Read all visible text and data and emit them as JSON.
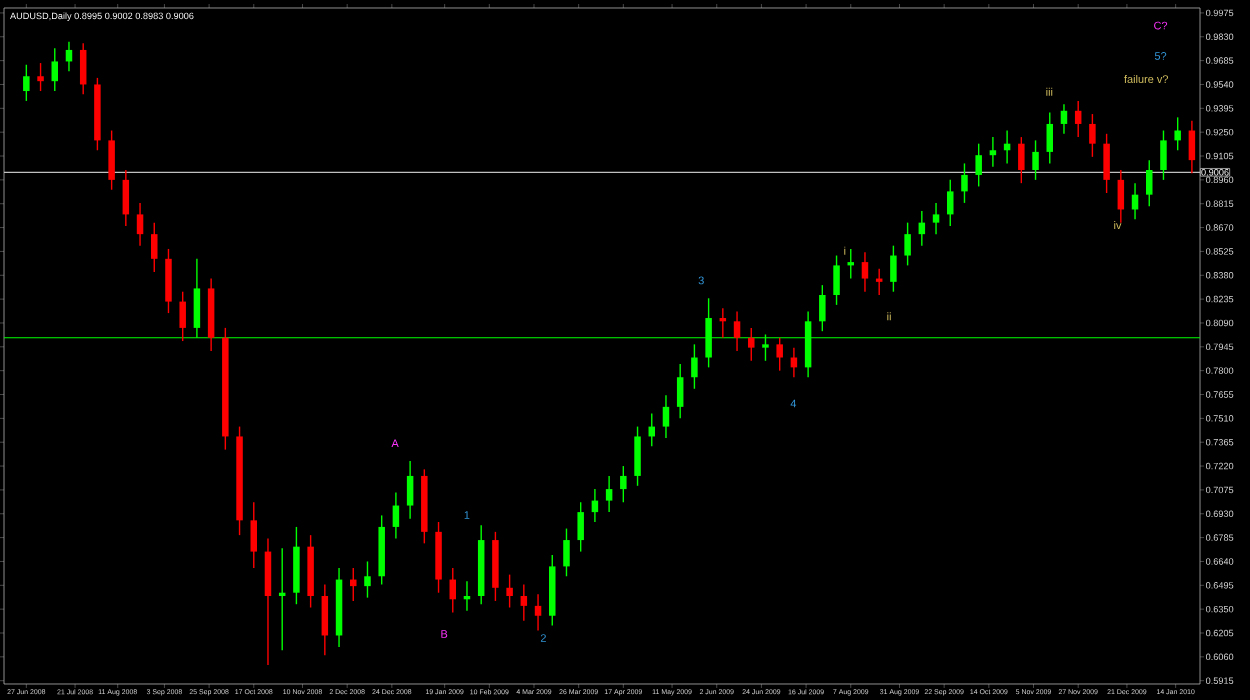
{
  "chart_data": {
    "type": "candlestick",
    "title": "AUDUSD,Daily  0.8995 0.9002 0.8983 0.9006",
    "x": [
      "2008-06-27",
      "2008-07-04",
      "2008-07-11",
      "2008-07-18",
      "2008-07-25",
      "2008-08-01",
      "2008-08-08",
      "2008-08-15",
      "2008-08-22",
      "2008-08-29",
      "2008-09-05",
      "2008-09-12",
      "2008-09-19",
      "2008-09-26",
      "2008-10-03",
      "2008-10-10",
      "2008-10-17",
      "2008-10-24",
      "2008-10-31",
      "2008-11-07",
      "2008-11-14",
      "2008-11-21",
      "2008-11-28",
      "2008-12-05",
      "2008-12-12",
      "2008-12-19",
      "2008-12-26",
      "2009-01-02",
      "2009-01-09",
      "2009-01-16",
      "2009-01-23",
      "2009-01-30",
      "2009-02-06",
      "2009-02-13",
      "2009-02-20",
      "2009-02-27",
      "2009-03-06",
      "2009-03-13",
      "2009-03-20",
      "2009-03-27",
      "2009-04-03",
      "2009-04-10",
      "2009-04-17",
      "2009-04-24",
      "2009-05-01",
      "2009-05-08",
      "2009-05-15",
      "2009-05-22",
      "2009-05-29",
      "2009-06-05",
      "2009-06-12",
      "2009-06-19",
      "2009-06-26",
      "2009-07-03",
      "2009-07-10",
      "2009-07-17",
      "2009-07-24",
      "2009-07-31",
      "2009-08-07",
      "2009-08-14",
      "2009-08-21",
      "2009-08-28",
      "2009-09-04",
      "2009-09-11",
      "2009-09-18",
      "2009-09-25",
      "2009-10-02",
      "2009-10-09",
      "2009-10-16",
      "2009-10-23",
      "2009-10-30",
      "2009-11-06",
      "2009-11-13",
      "2009-11-20",
      "2009-11-27",
      "2009-12-04",
      "2009-12-11",
      "2009-12-18",
      "2009-12-25",
      "2010-01-01",
      "2010-01-08",
      "2010-01-15",
      "2010-01-22"
    ],
    "ohlc": [
      [
        0.95,
        0.966,
        0.944,
        0.959
      ],
      [
        0.959,
        0.967,
        0.95,
        0.956
      ],
      [
        0.956,
        0.976,
        0.95,
        0.968
      ],
      [
        0.968,
        0.98,
        0.962,
        0.975
      ],
      [
        0.975,
        0.979,
        0.948,
        0.954
      ],
      [
        0.954,
        0.958,
        0.914,
        0.92
      ],
      [
        0.92,
        0.926,
        0.89,
        0.896
      ],
      [
        0.896,
        0.902,
        0.868,
        0.875
      ],
      [
        0.875,
        0.882,
        0.856,
        0.863
      ],
      [
        0.863,
        0.87,
        0.84,
        0.848
      ],
      [
        0.848,
        0.854,
        0.815,
        0.822
      ],
      [
        0.822,
        0.828,
        0.798,
        0.806
      ],
      [
        0.806,
        0.848,
        0.8,
        0.83
      ],
      [
        0.83,
        0.836,
        0.792,
        0.8
      ],
      [
        0.8,
        0.806,
        0.732,
        0.74
      ],
      [
        0.74,
        0.746,
        0.68,
        0.689
      ],
      [
        0.689,
        0.7,
        0.66,
        0.67
      ],
      [
        0.67,
        0.678,
        0.601,
        0.643
      ],
      [
        0.643,
        0.672,
        0.61,
        0.645
      ],
      [
        0.645,
        0.685,
        0.638,
        0.673
      ],
      [
        0.673,
        0.68,
        0.636,
        0.643
      ],
      [
        0.643,
        0.65,
        0.607,
        0.619
      ],
      [
        0.619,
        0.66,
        0.612,
        0.653
      ],
      [
        0.653,
        0.66,
        0.64,
        0.649
      ],
      [
        0.649,
        0.664,
        0.642,
        0.655
      ],
      [
        0.655,
        0.692,
        0.65,
        0.685
      ],
      [
        0.685,
        0.706,
        0.678,
        0.698
      ],
      [
        0.698,
        0.725,
        0.69,
        0.716
      ],
      [
        0.716,
        0.72,
        0.675,
        0.682
      ],
      [
        0.682,
        0.688,
        0.645,
        0.653
      ],
      [
        0.653,
        0.66,
        0.633,
        0.641
      ],
      [
        0.641,
        0.652,
        0.634,
        0.643
      ],
      [
        0.643,
        0.686,
        0.638,
        0.677
      ],
      [
        0.677,
        0.682,
        0.64,
        0.648
      ],
      [
        0.648,
        0.656,
        0.636,
        0.643
      ],
      [
        0.643,
        0.65,
        0.628,
        0.637
      ],
      [
        0.637,
        0.644,
        0.622,
        0.631
      ],
      [
        0.631,
        0.668,
        0.625,
        0.661
      ],
      [
        0.661,
        0.684,
        0.655,
        0.677
      ],
      [
        0.677,
        0.7,
        0.67,
        0.694
      ],
      [
        0.694,
        0.708,
        0.688,
        0.701
      ],
      [
        0.701,
        0.716,
        0.694,
        0.708
      ],
      [
        0.708,
        0.722,
        0.7,
        0.716
      ],
      [
        0.716,
        0.746,
        0.71,
        0.74
      ],
      [
        0.74,
        0.754,
        0.734,
        0.746
      ],
      [
        0.746,
        0.765,
        0.739,
        0.758
      ],
      [
        0.758,
        0.784,
        0.751,
        0.776
      ],
      [
        0.776,
        0.796,
        0.769,
        0.788
      ],
      [
        0.788,
        0.824,
        0.782,
        0.812
      ],
      [
        0.812,
        0.818,
        0.8,
        0.81
      ],
      [
        0.81,
        0.816,
        0.792,
        0.8
      ],
      [
        0.8,
        0.806,
        0.786,
        0.794
      ],
      [
        0.794,
        0.802,
        0.786,
        0.796
      ],
      [
        0.796,
        0.8,
        0.78,
        0.788
      ],
      [
        0.788,
        0.794,
        0.776,
        0.782
      ],
      [
        0.782,
        0.816,
        0.776,
        0.81
      ],
      [
        0.81,
        0.832,
        0.804,
        0.826
      ],
      [
        0.826,
        0.85,
        0.82,
        0.844
      ],
      [
        0.844,
        0.854,
        0.836,
        0.846
      ],
      [
        0.846,
        0.852,
        0.828,
        0.836
      ],
      [
        0.836,
        0.842,
        0.826,
        0.834
      ],
      [
        0.834,
        0.856,
        0.828,
        0.85
      ],
      [
        0.85,
        0.87,
        0.844,
        0.863
      ],
      [
        0.863,
        0.877,
        0.856,
        0.87
      ],
      [
        0.87,
        0.882,
        0.863,
        0.875
      ],
      [
        0.875,
        0.896,
        0.868,
        0.889
      ],
      [
        0.889,
        0.906,
        0.882,
        0.899
      ],
      [
        0.899,
        0.918,
        0.892,
        0.911
      ],
      [
        0.911,
        0.922,
        0.904,
        0.914
      ],
      [
        0.914,
        0.926,
        0.906,
        0.918
      ],
      [
        0.918,
        0.922,
        0.894,
        0.902
      ],
      [
        0.902,
        0.92,
        0.896,
        0.913
      ],
      [
        0.913,
        0.937,
        0.906,
        0.93
      ],
      [
        0.93,
        0.942,
        0.924,
        0.938
      ],
      [
        0.938,
        0.944,
        0.922,
        0.93
      ],
      [
        0.93,
        0.936,
        0.91,
        0.918
      ],
      [
        0.918,
        0.924,
        0.888,
        0.896
      ],
      [
        0.896,
        0.902,
        0.87,
        0.878
      ],
      [
        0.878,
        0.894,
        0.872,
        0.887
      ],
      [
        0.887,
        0.908,
        0.88,
        0.902
      ],
      [
        0.902,
        0.926,
        0.896,
        0.92
      ],
      [
        0.92,
        0.934,
        0.914,
        0.926
      ],
      [
        0.926,
        0.932,
        0.9,
        0.908
      ]
    ],
    "colors": [
      "#00ff00",
      "#ff0000",
      "#00ff00",
      "#00ff00",
      "#ff0000",
      "#ff0000",
      "#ff0000",
      "#ff0000",
      "#ff0000",
      "#ff0000",
      "#ff0000",
      "#ff0000",
      "#00ff00",
      "#ff0000",
      "#ff0000",
      "#ff0000",
      "#ff0000",
      "#ff0000",
      "#00ff00",
      "#00ff00",
      "#ff0000",
      "#ff0000",
      "#00ff00",
      "#ff0000",
      "#00ff00",
      "#00ff00",
      "#00ff00",
      "#00ff00",
      "#ff0000",
      "#ff0000",
      "#ff0000",
      "#00ff00",
      "#00ff00",
      "#ff0000",
      "#ff0000",
      "#ff0000",
      "#ff0000",
      "#00ff00",
      "#00ff00",
      "#00ff00",
      "#00ff00",
      "#00ff00",
      "#00ff00",
      "#00ff00",
      "#00ff00",
      "#00ff00",
      "#00ff00",
      "#00ff00",
      "#00ff00",
      "#ff0000",
      "#ff0000",
      "#ff0000",
      "#00ff00",
      "#ff0000",
      "#ff0000",
      "#00ff00",
      "#00ff00",
      "#00ff00",
      "#00ff00",
      "#ff0000",
      "#ff0000",
      "#00ff00",
      "#00ff00",
      "#00ff00",
      "#00ff00",
      "#00ff00",
      "#00ff00",
      "#00ff00",
      "#00ff00",
      "#00ff00",
      "#ff0000",
      "#00ff00",
      "#00ff00",
      "#00ff00",
      "#ff0000",
      "#ff0000",
      "#ff0000",
      "#ff0000",
      "#00ff00",
      "#00ff00",
      "#00ff00",
      "#00ff00",
      "#ff0000"
    ],
    "xlim": [
      "2008-06-16",
      "2010-01-26"
    ],
    "xticks": [
      {
        "value": "2008-06-27",
        "label": "27 Jun 2008"
      },
      {
        "value": "2008-07-21",
        "label": "21 Jul 2008"
      },
      {
        "value": "2008-08-11",
        "label": "11 Aug 2008"
      },
      {
        "value": "2008-09-03",
        "label": "3 Sep 2008"
      },
      {
        "value": "2008-09-25",
        "label": "25 Sep 2008"
      },
      {
        "value": "2008-10-17",
        "label": "17 Oct 2008"
      },
      {
        "value": "2008-11-10",
        "label": "10 Nov 2008"
      },
      {
        "value": "2008-12-02",
        "label": "2 Dec 2008"
      },
      {
        "value": "2008-12-24",
        "label": "24 Dec 2008"
      },
      {
        "value": "2009-01-19",
        "label": "19 Jan 2009"
      },
      {
        "value": "2009-02-10",
        "label": "10 Feb 2009"
      },
      {
        "value": "2009-03-04",
        "label": "4 Mar 2009"
      },
      {
        "value": "2009-03-26",
        "label": "26 Mar 2009"
      },
      {
        "value": "2009-04-17",
        "label": "17 Apr 2009"
      },
      {
        "value": "2009-05-11",
        "label": "11 May 2009"
      },
      {
        "value": "2009-06-02",
        "label": "2 Jun 2009"
      },
      {
        "value": "2009-06-24",
        "label": "24 Jun 2009"
      },
      {
        "value": "2009-07-16",
        "label": "16 Jul 2009"
      },
      {
        "value": "2009-08-07",
        "label": "7 Aug 2009"
      },
      {
        "value": "2009-08-31",
        "label": "31 Aug 2009"
      },
      {
        "value": "2009-09-22",
        "label": "22 Sep 2009"
      },
      {
        "value": "2009-10-14",
        "label": "14 Oct 2009"
      },
      {
        "value": "2009-11-05",
        "label": "5 Nov 2009"
      },
      {
        "value": "2009-11-27",
        "label": "27 Nov 2009"
      },
      {
        "value": "2009-12-21",
        "label": "21 Dec 2009"
      },
      {
        "value": "2010-01-14",
        "label": "14 Jan 2010"
      }
    ],
    "ylim": [
      0.5895,
      1.0005
    ],
    "yticks": [
      0.5915,
      {
        "value": 0.606,
        "label": "0.6060"
      },
      0.6205,
      {
        "value": 0.635,
        "label": "0.6350"
      },
      0.6495,
      {
        "value": 0.664,
        "label": "0.6640"
      },
      0.6785,
      {
        "value": 0.693,
        "label": "0.6930"
      },
      0.7075,
      {
        "value": 0.722,
        "label": "0.7220"
      },
      0.7365,
      {
        "value": 0.751,
        "label": "0.7510"
      },
      0.7655,
      {
        "value": 0.78,
        "label": "0.7800"
      },
      0.7945,
      {
        "value": 0.809,
        "label": "0.8090"
      },
      0.8235,
      {
        "value": 0.838,
        "label": "0.8380"
      },
      0.8525,
      {
        "value": 0.867,
        "label": "0.8670"
      },
      0.8815,
      {
        "value": 0.896,
        "label": "0.8960"
      },
      0.9105,
      {
        "value": 0.925,
        "label": "0.9250"
      },
      0.9395,
      {
        "value": 0.954,
        "label": "0.9540"
      },
      0.9685,
      {
        "value": 0.983,
        "label": "0.9830"
      },
      0.9975
    ],
    "ref_lines": [
      {
        "axis": "y",
        "value": 0.9006,
        "label": "0.9006",
        "color": "#c0c0c0"
      },
      {
        "axis": "y",
        "value": 0.8,
        "color": "#00ff00"
      }
    ],
    "annotations": [
      "A",
      "B",
      "1",
      "2",
      "3",
      "4",
      "i",
      "ii",
      "iii",
      "iv",
      "C?",
      "5?",
      "failure v?"
    ]
  }
}
